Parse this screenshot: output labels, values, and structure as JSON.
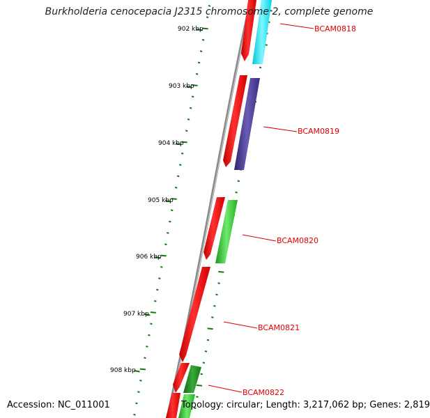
{
  "title": "Burkholderia cenocepacia J2315 chromosome 2, complete genome",
  "accession": "Accession: NC_011001",
  "summary": "Topology: circular; Length: 3,217,062 bp; Genes: 2,819",
  "ticks": [
    "902 kbp",
    "903 kbp",
    "904 kbp",
    "905 kbp",
    "906 kbp",
    "907 kbp",
    "908 kbp"
  ],
  "genes": [
    "BCAM0818",
    "BCAM0819",
    "BCAM0820",
    "BCAM0821",
    "BCAM0822"
  ],
  "colors": {
    "backbone": "#8a8a8a",
    "forward": "#ff0000",
    "cyan": "#00e5ee",
    "purple": "#4b3c96",
    "green": "#2ec42e",
    "tick": "#107a10",
    "label": "#e00000"
  }
}
